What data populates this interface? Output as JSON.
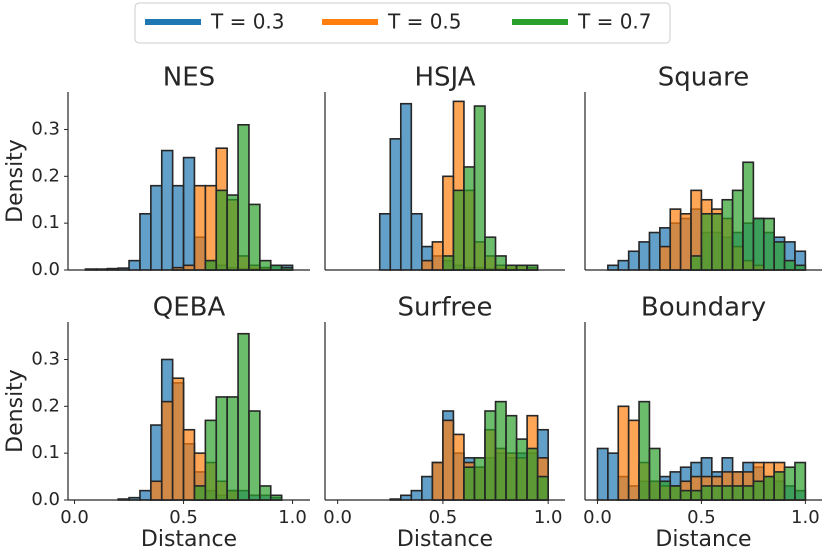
{
  "legend": {
    "entries": [
      {
        "name": "T = 0.3",
        "color": "#1f77b4"
      },
      {
        "name": "T = 0.5",
        "color": "#ff7f0e"
      },
      {
        "name": "T = 0.7",
        "color": "#2ca02c"
      }
    ]
  },
  "chart_data": [
    {
      "type": "histogram",
      "title": "NES",
      "ylabel": "Density",
      "bins": [
        0,
        0.05,
        0.1,
        0.15,
        0.2,
        0.25,
        0.3,
        0.35,
        0.4,
        0.45,
        0.5,
        0.55,
        0.6,
        0.65,
        0.7,
        0.75,
        0.8,
        0.85,
        0.9,
        0.95,
        1.0
      ],
      "series": [
        {
          "values": [
            0,
            0.002,
            0.002,
            0.003,
            0.004,
            0.02,
            0.12,
            0.18,
            0.255,
            0.18,
            0.24,
            0.07,
            0.02,
            0.01,
            0.005,
            0.003,
            0.003,
            0.005,
            0.01,
            0.01
          ]
        },
        {
          "values": [
            0,
            0,
            0,
            0,
            0,
            0,
            0,
            0,
            0,
            0.005,
            0.01,
            0.18,
            0.18,
            0.26,
            0.15,
            0.03,
            0.01,
            0.005,
            0,
            0
          ]
        },
        {
          "values": [
            0,
            0,
            0,
            0,
            0,
            0,
            0,
            0,
            0,
            0,
            0,
            0,
            0.02,
            0.17,
            0.16,
            0.31,
            0.14,
            0.02,
            0.01,
            0.005
          ]
        }
      ],
      "xlim": [
        -0.03,
        1.08
      ],
      "ylim": [
        0,
        0.38
      ],
      "yticks": [
        {
          "value": 0,
          "label": "0.0"
        },
        0.1,
        0.2,
        0.3
      ]
    },
    {
      "type": "histogram",
      "title": "HSJA",
      "bins": [
        0,
        0.05,
        0.1,
        0.15,
        0.2,
        0.25,
        0.3,
        0.35,
        0.4,
        0.45,
        0.5,
        0.55,
        0.6,
        0.65,
        0.7,
        0.75,
        0.8,
        0.85,
        0.9,
        0.95,
        1.0
      ],
      "series": [
        {
          "values": [
            0,
            0,
            0,
            0,
            0.12,
            0.28,
            0.355,
            0.12,
            0.05,
            0.03,
            0.02,
            0.01,
            0.005,
            0.005,
            0.003,
            0.003,
            0.002,
            0,
            0,
            0
          ]
        },
        {
          "values": [
            0,
            0,
            0,
            0,
            0,
            0,
            0,
            0,
            0.02,
            0.06,
            0.2,
            0.36,
            0.17,
            0.06,
            0.03,
            0.01,
            0.01,
            0.01,
            0.005,
            0
          ]
        },
        {
          "values": [
            0,
            0,
            0,
            0,
            0,
            0,
            0,
            0,
            0,
            0,
            0.03,
            0.17,
            0.22,
            0.35,
            0.07,
            0.03,
            0.01,
            0.01,
            0.01,
            0
          ]
        }
      ],
      "xlim": [
        -0.06,
        1.08
      ],
      "ylim": [
        0,
        0.38
      ]
    },
    {
      "type": "histogram",
      "title": "Square",
      "bins": [
        0,
        0.05,
        0.1,
        0.15,
        0.2,
        0.25,
        0.3,
        0.35,
        0.4,
        0.45,
        0.5,
        0.55,
        0.6,
        0.65,
        0.7,
        0.75,
        0.8,
        0.85,
        0.9,
        0.95,
        1.0
      ],
      "series": [
        {
          "values": [
            0,
            0.01,
            0.02,
            0.04,
            0.06,
            0.08,
            0.09,
            0.1,
            0.11,
            0.13,
            0.08,
            0.08,
            0.07,
            0.08,
            0.1,
            0.11,
            0.08,
            0.07,
            0.06,
            0.04
          ]
        },
        {
          "values": [
            0,
            0,
            0,
            0,
            0,
            0,
            0.05,
            0.13,
            0.12,
            0.17,
            0.15,
            0.13,
            0.11,
            0.05,
            0.02,
            0.01,
            0,
            0,
            0,
            0
          ]
        },
        {
          "values": [
            0,
            0,
            0,
            0,
            0,
            0,
            0,
            0,
            0,
            0.03,
            0.12,
            0.12,
            0.15,
            0.17,
            0.23,
            0.11,
            0.11,
            0.06,
            0.02,
            0.01
          ]
        }
      ],
      "xlim": [
        -0.06,
        1.08
      ],
      "ylim": [
        0,
        0.38
      ]
    },
    {
      "type": "histogram",
      "title": "QEBA",
      "xlabel": "Distance",
      "ylabel": "Density",
      "bins": [
        0,
        0.05,
        0.1,
        0.15,
        0.2,
        0.25,
        0.3,
        0.35,
        0.4,
        0.45,
        0.5,
        0.55,
        0.6,
        0.65,
        0.7,
        0.75,
        0.8,
        0.85,
        0.9,
        0.95,
        1.0
      ],
      "series": [
        {
          "values": [
            0,
            0,
            0,
            0,
            0.002,
            0.005,
            0.02,
            0.16,
            0.3,
            0.25,
            0.12,
            0.06,
            0.02,
            0.01,
            0.02,
            0.02,
            0.01,
            0.01,
            0.005,
            0
          ]
        },
        {
          "values": [
            0,
            0,
            0,
            0,
            0,
            0,
            0,
            0.04,
            0.21,
            0.26,
            0.15,
            0.1,
            0.08,
            0.04,
            0.02,
            0,
            0,
            0,
            0,
            0
          ]
        },
        {
          "values": [
            0,
            0,
            0,
            0,
            0,
            0,
            0,
            0,
            0,
            0,
            0,
            0.03,
            0.17,
            0.22,
            0.22,
            0.355,
            0.19,
            0.03,
            0.01,
            0
          ]
        }
      ],
      "xlim": [
        -0.03,
        1.08
      ],
      "ylim": [
        0,
        0.38
      ],
      "xticks": [
        {
          "value": 0,
          "label": "0.0"
        },
        0.5,
        {
          "value": 1,
          "label": "1.0"
        }
      ],
      "yticks": [
        {
          "value": 0,
          "label": "0.0"
        },
        0.1,
        0.2,
        0.3
      ]
    },
    {
      "type": "histogram",
      "title": "Surfree",
      "xlabel": "Distance",
      "bins": [
        0,
        0.05,
        0.1,
        0.15,
        0.2,
        0.25,
        0.3,
        0.35,
        0.4,
        0.45,
        0.5,
        0.55,
        0.6,
        0.65,
        0.7,
        0.75,
        0.8,
        0.85,
        0.9,
        0.95,
        1.0
      ],
      "series": [
        {
          "values": [
            0,
            0,
            0,
            0,
            0,
            0.002,
            0.01,
            0.02,
            0.05,
            0.08,
            0.19,
            0.1,
            0.09,
            0.07,
            0.09,
            0.1,
            0.09,
            0.1,
            0.1,
            0.15
          ]
        },
        {
          "values": [
            0,
            0,
            0,
            0,
            0,
            0,
            0,
            0,
            0,
            0.08,
            0.17,
            0.14,
            0.08,
            0.07,
            0.15,
            0.11,
            0.1,
            0.09,
            0.18,
            0.09
          ]
        },
        {
          "values": [
            0,
            0,
            0,
            0,
            0,
            0,
            0,
            0,
            0,
            0,
            0,
            0,
            0.07,
            0.09,
            0.19,
            0.21,
            0.18,
            0.13,
            0.11,
            0.05
          ]
        }
      ],
      "xlim": [
        -0.06,
        1.08
      ],
      "ylim": [
        0,
        0.38
      ],
      "xticks": [
        {
          "value": 0,
          "label": "0.0"
        },
        0.5,
        {
          "value": 1,
          "label": "1.0"
        }
      ]
    },
    {
      "type": "histogram",
      "title": "Boundary",
      "xlabel": "Distance",
      "bins": [
        0,
        0.05,
        0.1,
        0.15,
        0.2,
        0.25,
        0.3,
        0.35,
        0.4,
        0.45,
        0.5,
        0.55,
        0.6,
        0.65,
        0.7,
        0.75,
        0.8,
        0.85,
        0.9,
        0.95,
        1.0
      ],
      "series": [
        {
          "values": [
            0.11,
            0.1,
            0.05,
            0.03,
            0.04,
            0.04,
            0.05,
            0.06,
            0.07,
            0.08,
            0.09,
            0.06,
            0.09,
            0.06,
            0.08,
            0.07,
            0.05,
            0.04,
            0.03,
            0.02
          ]
        },
        {
          "values": [
            0,
            0,
            0.2,
            0.17,
            0.08,
            0.04,
            0.03,
            0.03,
            0.04,
            0.05,
            0.05,
            0.05,
            0.06,
            0.06,
            0.06,
            0.08,
            0.08,
            0.08,
            0,
            0
          ]
        },
        {
          "values": [
            0,
            0,
            0,
            0,
            0.21,
            0.11,
            0.04,
            0.03,
            0.02,
            0.02,
            0.03,
            0.03,
            0.03,
            0.03,
            0.03,
            0.04,
            0.05,
            0.06,
            0.07,
            0.08
          ]
        }
      ],
      "xlim": [
        -0.06,
        1.08
      ],
      "ylim": [
        0,
        0.38
      ],
      "xticks": [
        {
          "value": 0,
          "label": "0.0"
        },
        0.5,
        {
          "value": 1,
          "label": "1.0"
        }
      ]
    }
  ]
}
